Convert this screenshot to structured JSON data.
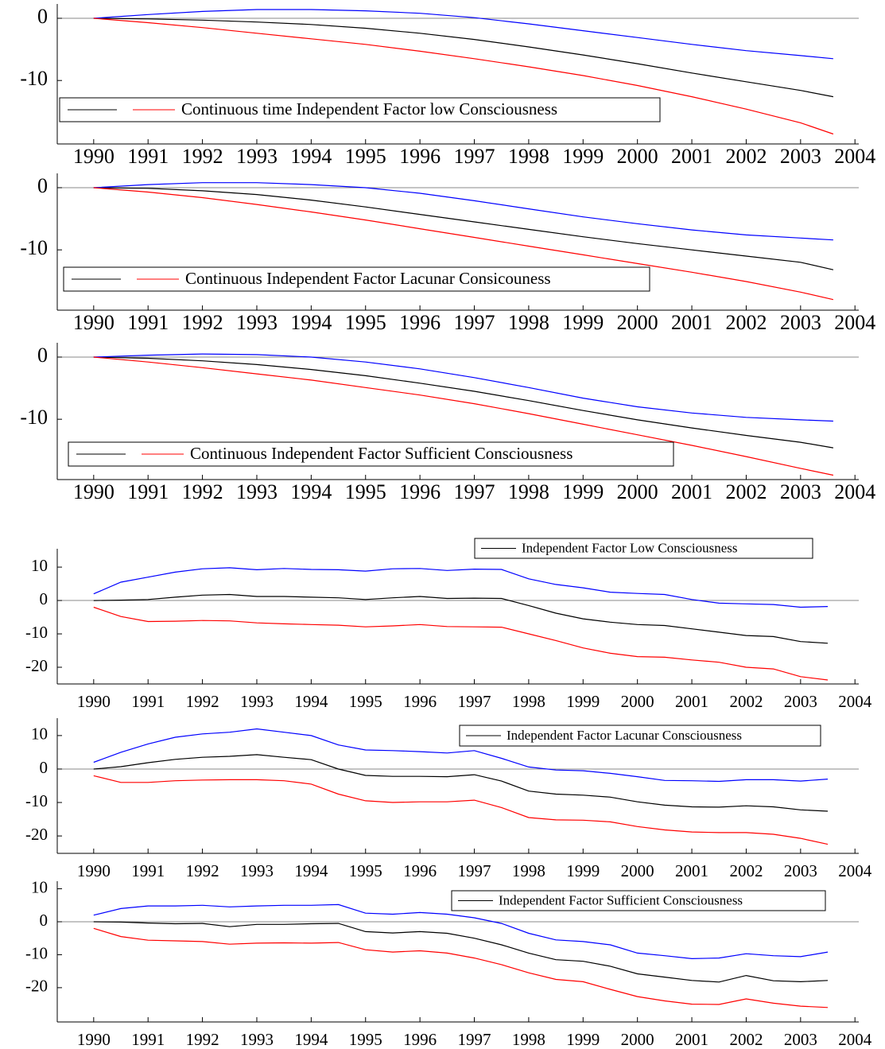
{
  "chart_data": [
    {
      "type": "line",
      "xlim": [
        1989.33,
        2004.07
      ],
      "ylim": [
        -20.2,
        2.3
      ],
      "yticks": [
        -10,
        0
      ],
      "xticks": [
        1990,
        1991,
        1992,
        1993,
        1994,
        1995,
        1996,
        1997,
        1998,
        1999,
        2000,
        2001,
        2002,
        2003,
        2004
      ],
      "x": [
        1990,
        1991,
        1992,
        1993,
        1994,
        1995,
        1996,
        1997,
        1998,
        1999,
        2000,
        2001,
        2002,
        2003,
        2003.6
      ],
      "series": [
        {
          "name": "Continuous time Independent Factor low Consciousness",
          "color": "#000000",
          "values": [
            0,
            -0.1,
            -0.3,
            -0.6,
            -1.0,
            -1.6,
            -2.4,
            -3.4,
            -4.6,
            -5.9,
            -7.3,
            -8.8,
            -10.2,
            -11.6,
            -12.6
          ]
        },
        {
          "color": "#0000ff",
          "values": [
            0,
            0.6,
            1.1,
            1.4,
            1.4,
            1.2,
            0.8,
            0.1,
            -0.9,
            -2.0,
            -3.1,
            -4.2,
            -5.2,
            -6.0,
            -6.5
          ]
        },
        {
          "color": "#ff0000",
          "values": [
            0,
            -0.7,
            -1.5,
            -2.4,
            -3.3,
            -4.2,
            -5.3,
            -6.5,
            -7.8,
            -9.2,
            -10.8,
            -12.6,
            -14.6,
            -16.8,
            -18.6
          ]
        }
      ]
    },
    {
      "type": "line",
      "xlim": [
        1989.33,
        2004.07
      ],
      "ylim": [
        -19.7,
        2.3
      ],
      "yticks": [
        -10,
        0
      ],
      "xticks": [
        1990,
        1991,
        1992,
        1993,
        1994,
        1995,
        1996,
        1997,
        1998,
        1999,
        2000,
        2001,
        2002,
        2003,
        2004
      ],
      "x": [
        1990,
        1991,
        1992,
        1993,
        1994,
        1995,
        1996,
        1997,
        1998,
        1999,
        2000,
        2001,
        2002,
        2003,
        2003.6
      ],
      "series": [
        {
          "name": "Continuous Independent Factor Lacunar Consicouness",
          "color": "#000000",
          "values": [
            0,
            -0.1,
            -0.5,
            -1.1,
            -2.0,
            -3.1,
            -4.3,
            -5.5,
            -6.7,
            -7.9,
            -9.0,
            -10.0,
            -11.0,
            -12.0,
            -13.2
          ]
        },
        {
          "color": "#0000ff",
          "values": [
            0,
            0.5,
            0.8,
            0.8,
            0.5,
            0,
            -0.9,
            -2.1,
            -3.4,
            -4.7,
            -5.8,
            -6.8,
            -7.6,
            -8.1,
            -8.4
          ]
        },
        {
          "color": "#ff0000",
          "values": [
            0,
            -0.7,
            -1.6,
            -2.7,
            -3.9,
            -5.2,
            -6.6,
            -8.0,
            -9.4,
            -10.8,
            -12.2,
            -13.6,
            -15.1,
            -16.8,
            -18.0
          ]
        }
      ]
    },
    {
      "type": "line",
      "xlim": [
        1989.33,
        2004.07
      ],
      "ylim": [
        -19.7,
        2.3
      ],
      "yticks": [
        -10,
        0
      ],
      "xticks": [
        1990,
        1991,
        1992,
        1993,
        1994,
        1995,
        1996,
        1997,
        1998,
        1999,
        2000,
        2001,
        2002,
        2003,
        2004
      ],
      "x": [
        1990,
        1991,
        1992,
        1993,
        1994,
        1995,
        1996,
        1997,
        1998,
        1999,
        2000,
        2001,
        2002,
        2003,
        2003.6
      ],
      "series": [
        {
          "name": "Continuous Independent Factor Sufficient Consciousness",
          "color": "#000000",
          "values": [
            0,
            -0.2,
            -0.6,
            -1.2,
            -2.0,
            -3.0,
            -4.2,
            -5.5,
            -7.0,
            -8.6,
            -10.1,
            -11.4,
            -12.6,
            -13.7,
            -14.6
          ]
        },
        {
          "color": "#0000ff",
          "values": [
            0,
            0.3,
            0.5,
            0.4,
            0,
            -0.8,
            -1.9,
            -3.3,
            -4.9,
            -6.6,
            -8.0,
            -9.0,
            -9.7,
            -10.1,
            -10.3
          ]
        },
        {
          "color": "#ff0000",
          "values": [
            0,
            -0.8,
            -1.7,
            -2.7,
            -3.7,
            -4.9,
            -6.1,
            -7.5,
            -9.1,
            -10.8,
            -12.5,
            -14.2,
            -16.0,
            -17.9,
            -19.0
          ]
        }
      ]
    },
    {
      "type": "line",
      "xlim": [
        1989.33,
        2004.07
      ],
      "ylim": [
        -25,
        15.5
      ],
      "yticks": [
        -20,
        -10,
        0,
        10
      ],
      "xticks": [
        1990,
        1991,
        1992,
        1993,
        1994,
        1995,
        1996,
        1997,
        1998,
        1999,
        2000,
        2001,
        2002,
        2003,
        2004
      ],
      "x": [
        1990,
        1990.5,
        1991,
        1991.5,
        1992,
        1992.5,
        1993,
        1993.5,
        1994,
        1994.5,
        1995,
        1995.5,
        1996,
        1996.5,
        1997,
        1997.5,
        1998,
        1998.5,
        1999,
        1999.5,
        2000,
        2000.5,
        2001,
        2001.5,
        2002,
        2002.5,
        2003,
        2003.5
      ],
      "series": [
        {
          "name": "Independent Factor Low Consciousness",
          "color": "#000000",
          "values": [
            0,
            0.1,
            0.3,
            1.0,
            1.6,
            1.8,
            1.2,
            1.2,
            1.0,
            0.8,
            0.3,
            0.8,
            1.2,
            0.6,
            0.7,
            0.6,
            -1.5,
            -3.8,
            -5.5,
            -6.5,
            -7.2,
            -7.5,
            -8.5,
            -9.5,
            -10.5,
            -10.8,
            -12.3,
            -12.8
          ]
        },
        {
          "color": "#0000ff",
          "values": [
            2,
            5.5,
            7,
            8.5,
            9.5,
            9.8,
            9.2,
            9.6,
            9.3,
            9.2,
            8.8,
            9.5,
            9.6,
            9,
            9.4,
            9.3,
            6.5,
            4.8,
            3.8,
            2.5,
            2.1,
            1.8,
            0.3,
            -0.8,
            -1.0,
            -1.2,
            -2.0,
            -1.8
          ]
        },
        {
          "color": "#ff0000",
          "values": [
            -2,
            -4.8,
            -6.3,
            -6.2,
            -6.0,
            -6.1,
            -6.7,
            -7.0,
            -7.2,
            -7.4,
            -7.9,
            -7.6,
            -7.2,
            -7.8,
            -7.9,
            -8.0,
            -10.0,
            -12.0,
            -14.2,
            -15.8,
            -16.8,
            -17.0,
            -17.8,
            -18.5,
            -20.0,
            -20.5,
            -22.8,
            -23.8
          ]
        }
      ]
    },
    {
      "type": "line",
      "xlim": [
        1989.33,
        2004.07
      ],
      "ylim": [
        -25.2,
        15.2
      ],
      "yticks": [
        -20,
        -10,
        0,
        10
      ],
      "xticks": [
        1990,
        1991,
        1992,
        1993,
        1994,
        1995,
        1996,
        1997,
        1998,
        1999,
        2000,
        2001,
        2002,
        2003,
        2004
      ],
      "x": [
        1990,
        1990.5,
        1991,
        1991.5,
        1992,
        1992.5,
        1993,
        1993.5,
        1994,
        1994.5,
        1995,
        1995.5,
        1996,
        1996.5,
        1997,
        1997.5,
        1998,
        1998.5,
        1999,
        1999.5,
        2000,
        2000.5,
        2001,
        2001.5,
        2002,
        2002.5,
        2003,
        2003.5
      ],
      "series": [
        {
          "name": "Independent Factor Lacunar Consciousness",
          "color": "#000000",
          "values": [
            0,
            0.7,
            1.9,
            2.9,
            3.5,
            3.8,
            4.3,
            3.5,
            2.8,
            0.0,
            -1.9,
            -2.2,
            -2.2,
            -2.3,
            -1.7,
            -3.6,
            -6.6,
            -7.5,
            -7.8,
            -8.4,
            -9.8,
            -10.8,
            -11.3,
            -11.4,
            -11.0,
            -11.3,
            -12.2,
            -12.6
          ]
        },
        {
          "color": "#0000ff",
          "values": [
            2,
            5,
            7.5,
            9.5,
            10.5,
            11,
            12,
            11,
            10,
            7.2,
            5.7,
            5.5,
            5.2,
            4.8,
            5.5,
            3.2,
            0.6,
            -0.3,
            -0.5,
            -1.3,
            -2.3,
            -3.4,
            -3.5,
            -3.7,
            -3.2,
            -3.2,
            -3.6,
            -3.0
          ]
        },
        {
          "color": "#ff0000",
          "values": [
            -2,
            -4,
            -4,
            -3.5,
            -3.3,
            -3.2,
            -3.2,
            -3.5,
            -4.5,
            -7.5,
            -9.5,
            -10,
            -9.8,
            -9.8,
            -9.3,
            -11.5,
            -14.5,
            -15.2,
            -15.3,
            -15.8,
            -17.2,
            -18.2,
            -18.8,
            -19.0,
            -19.0,
            -19.5,
            -20.7,
            -22.5
          ]
        }
      ]
    },
    {
      "type": "line",
      "xlim": [
        1989.33,
        2004.07
      ],
      "ylim": [
        -30.4,
        12.3
      ],
      "yticks": [
        -20,
        -10,
        0,
        10
      ],
      "xticks": [
        1990,
        1991,
        1992,
        1993,
        1994,
        1995,
        1996,
        1997,
        1998,
        1999,
        2000,
        2001,
        2002,
        2003,
        2004
      ],
      "x": [
        1990,
        1990.5,
        1991,
        1991.5,
        1992,
        1992.5,
        1993,
        1993.5,
        1994,
        1994.5,
        1995,
        1995.5,
        1996,
        1996.5,
        1997,
        1997.5,
        1998,
        1998.5,
        1999,
        1999.5,
        2000,
        2000.5,
        2001,
        2001.5,
        2002,
        2002.5,
        2003,
        2003.5
      ],
      "series": [
        {
          "name": "Independent Factor Sufficient Consciousness",
          "color": "#000000",
          "values": [
            0,
            -0.1,
            -0.4,
            -0.6,
            -0.5,
            -1.5,
            -0.8,
            -0.8,
            -0.6,
            -0.5,
            -3.0,
            -3.4,
            -3.0,
            -3.5,
            -5.0,
            -7.0,
            -9.5,
            -11.5,
            -12.0,
            -13.5,
            -15.8,
            -16.8,
            -17.8,
            -18.3,
            -16.3,
            -17.9,
            -18.2,
            -17.8
          ]
        },
        {
          "color": "#0000ff",
          "values": [
            2,
            4,
            4.8,
            4.8,
            5,
            4.5,
            4.8,
            5,
            5,
            5.2,
            2.6,
            2.3,
            2.8,
            2.3,
            1.2,
            -0.5,
            -3.5,
            -5.5,
            -6,
            -7,
            -9.5,
            -10.3,
            -11.2,
            -11.0,
            -9.7,
            -10.3,
            -10.6,
            -9.2
          ]
        },
        {
          "color": "#ff0000",
          "values": [
            -2,
            -4.5,
            -5.6,
            -5.8,
            -6,
            -6.8,
            -6.5,
            -6.4,
            -6.5,
            -6.3,
            -8.5,
            -9.2,
            -8.8,
            -9.5,
            -11.0,
            -13,
            -15.5,
            -17.5,
            -18.2,
            -20.5,
            -22.7,
            -24.0,
            -25.0,
            -25.1,
            -23.4,
            -24.7,
            -25.6,
            -26.0
          ]
        }
      ]
    }
  ]
}
